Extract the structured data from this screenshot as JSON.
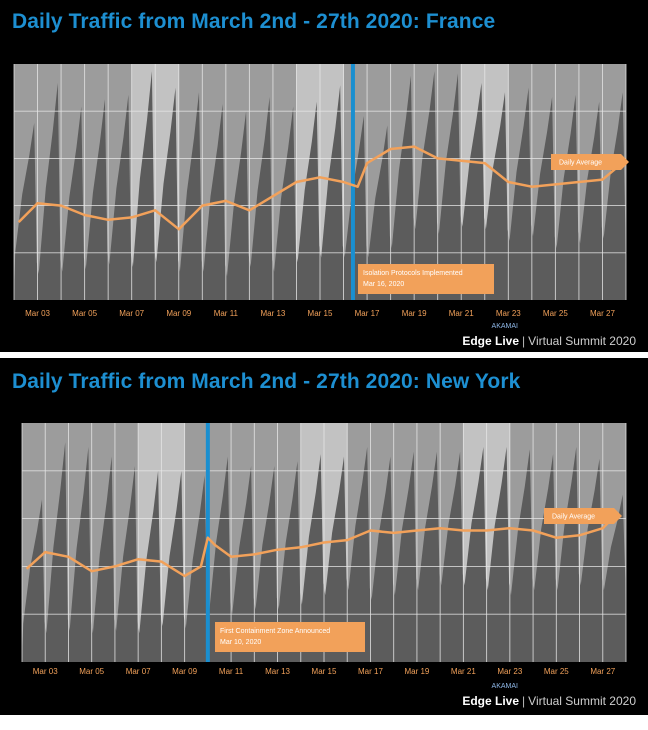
{
  "slides": [
    {
      "title": "Daily Traffic from March 2nd - 27th 2020: France",
      "brand": {
        "name": "Edge Live",
        "separator": "|",
        "subtitle": "Virtual Summit 2020",
        "logo_text": "AKAMAI"
      },
      "legend_label": "Daily Average",
      "event": {
        "label_line1": "Isolation Protocols Implemented",
        "label_line2": "Mar 16, 2020",
        "x": 16.4
      }
    },
    {
      "title": "Daily Traffic from March 2nd - 27th 2020: New York",
      "brand": {
        "name": "Edge Live",
        "separator": "|",
        "subtitle": "Virtual Summit 2020",
        "logo_text": "AKAMAI"
      },
      "legend_label": "Daily Average",
      "event": {
        "label_line1": "First Containment Zone Announced",
        "label_line2": "Mar 10, 2020",
        "x": 10.0
      }
    }
  ],
  "chart_data": [
    {
      "type": "area",
      "title": "Daily Traffic from March 2nd - 27th 2020: France",
      "x_tick_labels": [
        "Mar 03",
        "Mar 05",
        "Mar 07",
        "Mar 09",
        "Mar 11",
        "Mar 13",
        "Mar 15",
        "Mar 17",
        "Mar 19",
        "Mar 21",
        "Mar 23",
        "Mar 25",
        "Mar 27"
      ],
      "x_tick_values": [
        3,
        5,
        7,
        9,
        11,
        13,
        15,
        17,
        19,
        21,
        23,
        25,
        27
      ],
      "xlim": [
        2,
        28
      ],
      "ylim": [
        0,
        1
      ],
      "grid": true,
      "weekend_shading": [
        [
          7,
          9
        ],
        [
          14,
          16
        ],
        [
          21,
          23
        ]
      ],
      "series": [
        {
          "name": "Daily Average",
          "x": [
            2.2,
            3.0,
            4.0,
            5.0,
            6.0,
            7.0,
            8.0,
            9.0,
            10.0,
            11.0,
            12.0,
            13.0,
            14.0,
            15.0,
            16.0,
            16.3,
            16.6,
            17.0,
            18.0,
            19.0,
            20.0,
            21.0,
            22.0,
            23.0,
            24.0,
            25.0,
            26.0,
            27.0,
            27.6
          ],
          "values": [
            0.33,
            0.41,
            0.4,
            0.36,
            0.34,
            0.35,
            0.38,
            0.3,
            0.4,
            0.42,
            0.38,
            0.44,
            0.5,
            0.52,
            0.5,
            0.49,
            0.48,
            0.58,
            0.64,
            0.65,
            0.6,
            0.59,
            0.58,
            0.5,
            0.48,
            0.49,
            0.5,
            0.51,
            0.56
          ]
        }
      ],
      "daily_peaks": [
        0.75,
        0.92,
        0.82,
        0.85,
        0.87,
        0.97,
        0.9,
        0.88,
        0.83,
        0.8,
        0.86,
        0.82,
        0.84,
        0.91,
        0.78,
        0.74,
        0.95,
        0.97,
        0.96,
        0.92,
        0.88,
        0.9,
        0.86,
        0.87,
        0.84,
        0.88
      ],
      "daily_troughs": [
        0.2,
        0.11,
        0.12,
        0.13,
        0.15,
        0.14,
        0.16,
        0.12,
        0.12,
        0.1,
        0.14,
        0.12,
        0.16,
        0.18,
        0.18,
        0.18,
        0.22,
        0.3,
        0.28,
        0.31,
        0.3,
        0.25,
        0.27,
        0.22,
        0.24,
        0.26
      ]
    },
    {
      "type": "area",
      "title": "Daily Traffic from March 2nd - 27th 2020: New York",
      "x_tick_labels": [
        "Mar 03",
        "Mar 05",
        "Mar 07",
        "Mar 09",
        "Mar 11",
        "Mar 13",
        "Mar 15",
        "Mar 17",
        "Mar 19",
        "Mar 21",
        "Mar 23",
        "Mar 25",
        "Mar 27"
      ],
      "x_tick_values": [
        3,
        5,
        7,
        9,
        11,
        13,
        15,
        17,
        19,
        21,
        23,
        25,
        27
      ],
      "xlim": [
        2,
        28
      ],
      "ylim": [
        0,
        1
      ],
      "grid": true,
      "weekend_shading": [
        [
          7,
          9
        ],
        [
          14,
          16
        ],
        [
          21,
          23
        ]
      ],
      "series": [
        {
          "name": "Daily Average",
          "x": [
            2.2,
            3.0,
            4.0,
            5.0,
            6.0,
            7.0,
            8.0,
            9.0,
            9.7,
            10.0,
            10.3,
            11.0,
            12.0,
            13.0,
            14.0,
            15.0,
            16.0,
            17.0,
            18.0,
            19.0,
            20.0,
            21.0,
            22.0,
            23.0,
            24.0,
            25.0,
            26.0,
            27.0,
            27.6
          ],
          "values": [
            0.39,
            0.46,
            0.44,
            0.38,
            0.4,
            0.43,
            0.42,
            0.36,
            0.4,
            0.52,
            0.49,
            0.44,
            0.45,
            0.47,
            0.48,
            0.5,
            0.51,
            0.55,
            0.54,
            0.55,
            0.56,
            0.55,
            0.55,
            0.56,
            0.55,
            0.52,
            0.53,
            0.56,
            0.62
          ]
        }
      ],
      "daily_peaks": [
        0.68,
        0.92,
        0.9,
        0.86,
        0.82,
        0.8,
        0.8,
        0.78,
        0.86,
        0.82,
        0.82,
        0.84,
        0.87,
        0.86,
        0.9,
        0.86,
        0.88,
        0.88,
        0.88,
        0.9,
        0.9,
        0.89,
        0.87,
        0.9,
        0.85,
        0.7
      ],
      "daily_troughs": [
        0.16,
        0.12,
        0.13,
        0.12,
        0.13,
        0.12,
        0.15,
        0.14,
        0.2,
        0.2,
        0.22,
        0.22,
        0.24,
        0.28,
        0.3,
        0.26,
        0.28,
        0.3,
        0.32,
        0.32,
        0.3,
        0.28,
        0.3,
        0.3,
        0.32,
        0.3
      ]
    }
  ],
  "colors": {
    "background": "#000000",
    "title": "#1d8fd1",
    "plot_area": "#9c9c9c",
    "traffic_area": "#5c5c5c",
    "weekend_band": "#c2c2c2",
    "average_line": "#f2a15a",
    "callout": "#f2a15a",
    "event_line": "#1a8fd0",
    "gridline": "#e6e6e6",
    "tick_label": "#f2a15a"
  }
}
